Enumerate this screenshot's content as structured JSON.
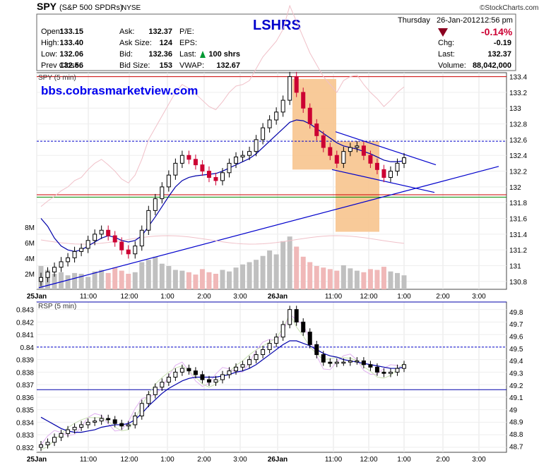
{
  "header": {
    "symbol": "SPY",
    "name": "(S&P 500 SPDRs)",
    "exchange": "NYSE",
    "watermark": "©StockCharts.com",
    "center_label": "LSHRS",
    "day": "Thursday",
    "date": "26-Jan-2012",
    "time": "12:56 pm",
    "pct_change": "-0.14%",
    "fields": [
      {
        "label": "Open:",
        "value": "133.15"
      },
      {
        "label": "High:",
        "value": "133.40"
      },
      {
        "label": "Low:",
        "value": "132.06"
      },
      {
        "label": "Prev Close:",
        "value": "132.56"
      },
      {
        "label": "Ask:",
        "value": "132.37"
      },
      {
        "label": "Ask Size:",
        "value": "124"
      },
      {
        "label": "Bid:",
        "value": "132.36"
      },
      {
        "label": "Bid Size:",
        "value": "153"
      },
      {
        "label": "P/E:",
        "value": ""
      },
      {
        "label": "EPS:",
        "value": ""
      },
      {
        "label": "Last:",
        "value": "100 shrs"
      },
      {
        "label": "VWAP:",
        "value": "132.67"
      },
      {
        "label": "Chg:",
        "value": "-0.19"
      },
      {
        "label": "Last:",
        "value": "132.37"
      },
      {
        "label": "Volume:",
        "value": "88,042,000"
      }
    ]
  },
  "colors": {
    "up": "#000000",
    "down": "#cc0033",
    "accent": "#0000cc",
    "shade": "#f7c48e"
  },
  "chart_data": [
    {
      "type": "candlestick",
      "panel_label": "SPY (5 min)",
      "annotation": "bbs.cobrasmarketview.com",
      "ylim": [
        130.7,
        133.45
      ],
      "y_ticks": [
        133.4,
        133.2,
        133.0,
        132.8,
        132.6,
        132.4,
        132.2,
        132.0,
        131.8,
        131.6,
        131.4,
        131.2,
        131.0,
        130.8
      ],
      "volume_ticks": [
        "8M",
        "6M",
        "4M",
        "2M"
      ],
      "volume_ylim": [
        0,
        10
      ],
      "x_ticks": [
        "25Jan",
        "11:00",
        "12:00",
        "1:00",
        "2:00",
        "3:00",
        "26Jan",
        "11:00",
        "12:00",
        "1:00",
        "2:00",
        "3:00"
      ],
      "series": [
        {
          "kind": "price",
          "values": [
            130.85,
            130.92,
            130.98,
            131.05,
            131.1,
            131.18,
            131.22,
            131.32,
            131.4,
            131.45,
            131.38,
            131.3,
            131.2,
            131.15,
            131.25,
            131.45,
            131.7,
            131.85,
            132.0,
            132.15,
            132.3,
            132.4,
            132.35,
            132.28,
            132.2,
            132.12,
            132.08,
            132.18,
            132.3,
            132.38,
            132.4,
            132.45,
            132.6,
            132.75,
            132.85,
            132.95,
            133.1,
            133.4,
            133.2,
            133.0,
            132.8,
            132.65,
            132.5,
            132.4,
            132.3,
            132.45,
            132.5,
            132.52,
            132.4,
            132.3,
            132.22,
            132.12,
            132.2,
            132.3,
            132.37
          ]
        },
        {
          "kind": "ma_blue",
          "values": [
            131.6,
            131.5,
            131.35,
            131.25,
            131.2,
            131.18,
            131.2,
            131.25,
            131.3,
            131.35,
            131.38,
            131.36,
            131.32,
            131.3,
            131.32,
            131.38,
            131.5,
            131.62,
            131.75,
            131.88,
            132.0,
            132.08,
            132.12,
            132.14,
            132.15,
            132.16,
            132.17,
            132.2,
            132.24,
            132.28,
            132.32,
            132.36,
            132.42,
            132.5,
            132.58,
            132.66,
            132.74,
            132.82,
            132.85,
            132.84,
            132.8,
            132.74,
            132.68,
            132.62,
            132.56,
            132.52,
            132.5,
            132.48,
            132.45,
            132.42,
            132.38,
            132.34,
            132.32,
            132.32,
            132.33
          ]
        },
        {
          "kind": "volume",
          "values": [
            3,
            2.5,
            2,
            2.2,
            1.8,
            2.1,
            2,
            1.6,
            2.3,
            2.5,
            2.1,
            2.8,
            2.4,
            2,
            2.2,
            3.5,
            3.8,
            4.2,
            3.3,
            3,
            2.5,
            2.4,
            2.2,
            1.9,
            2.6,
            2.2,
            2,
            2.5,
            2.3,
            2.8,
            3.2,
            3.5,
            3.8,
            4.3,
            5,
            4.5,
            6.2,
            6.8,
            5.5,
            4.2,
            3.5,
            3,
            2.8,
            2.6,
            2.4,
            3.1,
            2.7,
            2.4,
            2.2,
            2.6,
            2.5,
            2.9,
            2.3,
            2.1,
            1.8
          ]
        }
      ],
      "reference_lines": [
        133.4,
        132.58,
        131.9,
        131.87
      ]
    },
    {
      "type": "line",
      "panel_label": "RSP (5 min)",
      "ylim_left": [
        0.8316,
        0.8436
      ],
      "ylim_right": [
        48.65,
        49.88
      ],
      "y_ticks_left": [
        0.843,
        0.842,
        0.841,
        0.84,
        0.839,
        0.838,
        0.837,
        0.836,
        0.835,
        0.834,
        0.833,
        0.832
      ],
      "y_ticks_right": [
        49.8,
        49.7,
        49.6,
        49.5,
        49.4,
        49.3,
        49.2,
        49.1,
        49.0,
        48.9,
        48.8,
        48.7
      ],
      "x_ticks": [
        "25Jan",
        "11:00",
        "12:00",
        "1:00",
        "2:00",
        "3:00",
        "26Jan",
        "11:00",
        "12:00",
        "1:00",
        "2:00",
        "3:00"
      ],
      "series": [
        {
          "kind": "price",
          "values": [
            0.8322,
            0.8324,
            0.8328,
            0.8331,
            0.8334,
            0.8336,
            0.8338,
            0.834,
            0.8341,
            0.8343,
            0.8342,
            0.8339,
            0.8337,
            0.8338,
            0.8345,
            0.8355,
            0.8362,
            0.8368,
            0.8372,
            0.8376,
            0.838,
            0.8383,
            0.8381,
            0.8378,
            0.8374,
            0.8372,
            0.8374,
            0.8378,
            0.8381,
            0.8384,
            0.8386,
            0.839,
            0.8394,
            0.8398,
            0.8403,
            0.8408,
            0.8418,
            0.843,
            0.842,
            0.8412,
            0.8402,
            0.8394,
            0.8388,
            0.8387,
            0.8388,
            0.8388,
            0.8389,
            0.8389,
            0.8386,
            0.8384,
            0.838,
            0.8379,
            0.838,
            0.8383,
            0.8386
          ]
        },
        {
          "kind": "ma_blue",
          "values": [
            0.8344,
            0.8341,
            0.8338,
            0.8335,
            0.8333,
            0.8332,
            0.8332,
            0.8333,
            0.8334,
            0.8336,
            0.8337,
            0.8338,
            0.8338,
            0.8339,
            0.8342,
            0.8347,
            0.8353,
            0.8358,
            0.8363,
            0.8367,
            0.837,
            0.8373,
            0.8375,
            0.8376,
            0.8376,
            0.8376,
            0.8376,
            0.8377,
            0.8378,
            0.838,
            0.8381,
            0.8383,
            0.8386,
            0.839,
            0.8394,
            0.8398,
            0.8402,
            0.8405,
            0.8405,
            0.8403,
            0.8401,
            0.8398,
            0.8395,
            0.8393,
            0.8392,
            0.839,
            0.8389,
            0.8388,
            0.8387,
            0.8386,
            0.8385,
            0.8384,
            0.8383,
            0.8383,
            0.8384
          ]
        }
      ],
      "reference_lines": [
        0.8436,
        0.84,
        0.8366
      ]
    }
  ]
}
